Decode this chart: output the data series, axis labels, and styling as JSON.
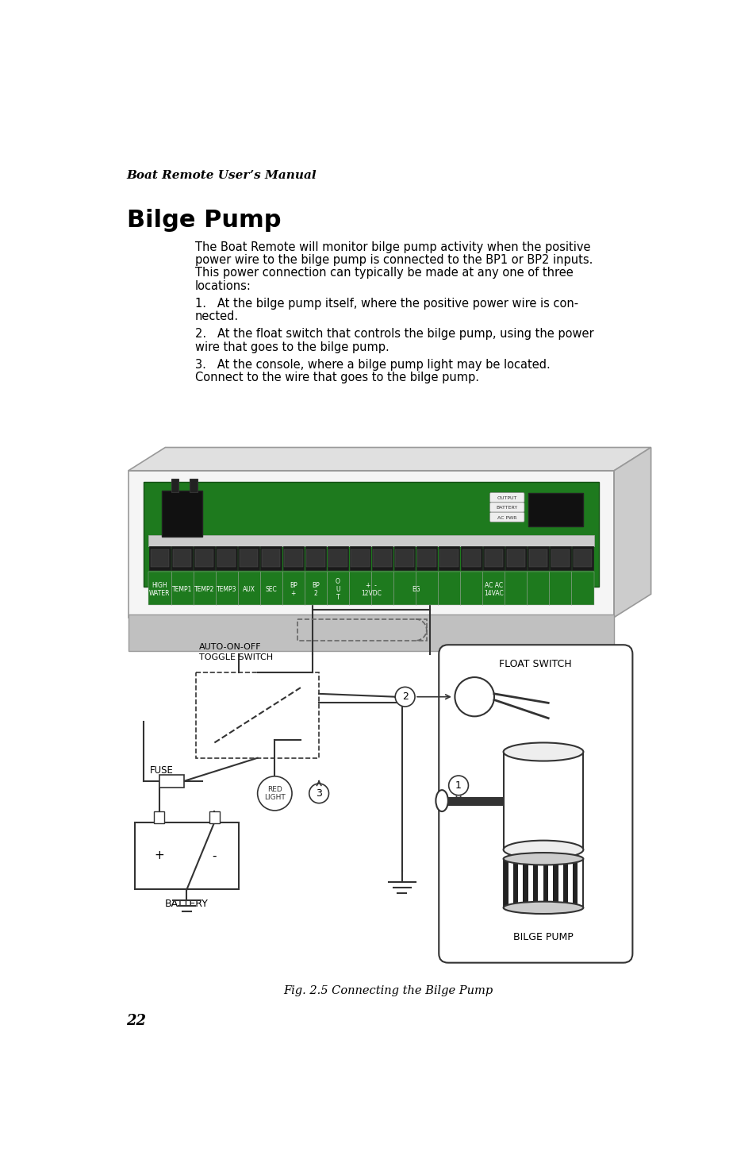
{
  "page_bg": "#ffffff",
  "header_text": "Boat Remote User’s Manual",
  "title": "Bilge Pump",
  "paragraph1_lines": [
    "The Boat Remote will monitor bilge pump activity when the positive",
    "power wire to the bilge pump is connected to the BP1 or BP2 inputs.",
    "This power connection can typically be made at any one of three",
    "locations:"
  ],
  "item1_lines": [
    "1.   At the bilge pump itself, where the positive power wire is con-",
    "nected."
  ],
  "item2_lines": [
    "2.   At the float switch that controls the bilge pump, using the power",
    "wire that goes to the bilge pump."
  ],
  "item3_lines": [
    "3.   At the console, where a bilge pump light may be located.",
    "Connect to the wire that goes to the bilge pump."
  ],
  "fig_caption": "Fig. 2.5 Connecting the Bilge Pump",
  "page_num": "22",
  "text_color": "#000000",
  "green_color": "#1e7a1e",
  "gray_color": "#b8b8b8",
  "light_gray": "#d4d4d4",
  "dark_gray": "#444444",
  "line_color": "#333333",
  "term_label_color": "#ffffff",
  "terminal_labels": [
    "HIGH\nWATER",
    "TEMP1",
    "TEMP2",
    "TEMP3",
    "AUX",
    "SEC",
    "BP\n+",
    "BP\n2",
    "O\nU\nT",
    "+  -\n12VDC",
    "EG",
    "AC AC\n14VAC"
  ]
}
